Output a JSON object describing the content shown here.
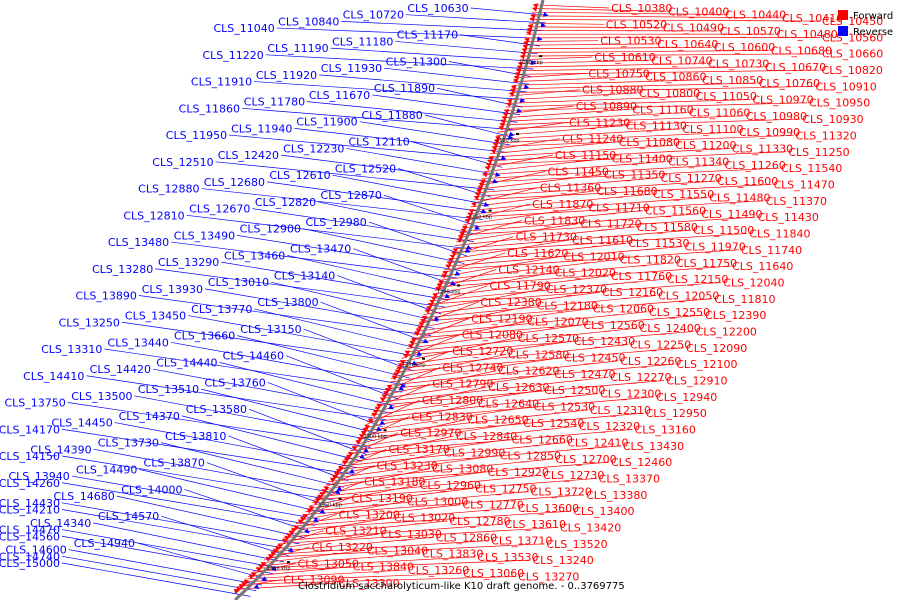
{
  "caption": "Clostridium saccharolyticum-like K10 draft genome. - 0..3769775",
  "legend": [
    {
      "label": "Forward",
      "color": "#ff0000"
    },
    {
      "label": "Reverse",
      "color": "#0000ff"
    }
  ],
  "colors": {
    "forward": "#ff0000",
    "reverse": "#0000ff",
    "backbone": "#777777"
  },
  "ticks": [
    "1050 kbp",
    "1100 kbp",
    "1150 kbp",
    "1200 kbp",
    "1250 kbp",
    "1300 kbp",
    "1350 kbp",
    "1400 kbp"
  ],
  "reverse_labels": [
    "CLS_10630",
    "CLS_10720",
    "CLS_10840",
    "CLS_11040",
    "CLS_11170",
    "CLS_11180",
    "CLS_11190",
    "CLS_11220",
    "CLS_11300",
    "CLS_11930",
    "CLS_11920",
    "CLS_11910",
    "CLS_11890",
    "CLS_11670",
    "CLS_11780",
    "CLS_11860",
    "CLS_11880",
    "CLS_11900",
    "CLS_11940",
    "CLS_11950",
    "CLS_12110",
    "CLS_12230",
    "CLS_12420",
    "CLS_12510",
    "CLS_12520",
    "CLS_12610",
    "CLS_12680",
    "CLS_12880",
    "CLS_12870",
    "CLS_12820",
    "CLS_12670",
    "CLS_12810",
    "CLS_12980",
    "CLS_12900",
    "CLS_13490",
    "CLS_13480",
    "CLS_13470",
    "CLS_13460",
    "CLS_13290",
    "CLS_13280",
    "CLS_13140",
    "CLS_13010",
    "CLS_13930",
    "CLS_13890",
    "CLS_13800",
    "CLS_13770",
    "CLS_13450",
    "CLS_13250",
    "CLS_13150",
    "CLS_13660",
    "CLS_13440",
    "CLS_13310",
    "CLS_14460",
    "CLS_14440",
    "CLS_14420",
    "CLS_14410",
    "CLS_13760",
    "CLS_13510",
    "CLS_13500",
    "CLS_13750",
    "CLS_13580",
    "CLS_14370",
    "CLS_14450",
    "CLS_14170",
    "CLS_13810",
    "CLS_13730",
    "CLS_14390",
    "CLS_14150",
    "CLS_13870",
    "CLS_14490",
    "CLS_13940",
    "CLS_14260",
    "CLS_14000",
    "CLS_14680",
    "CLS_14430",
    "CLS_14210",
    "CLS_14570",
    "CLS_14340",
    "CLS_14470",
    "CLS_14560",
    "CLS_14940",
    "CLS_14600",
    "CLS_14740",
    "CLS_15000"
  ],
  "forward_labels": [
    "CLS_10380",
    "CLS_10400",
    "CLS_10440",
    "CLS_10410",
    "CLS_10450",
    "CLS_10520",
    "CLS_10490",
    "CLS_10570",
    "CLS_10480",
    "CLS_10560",
    "CLS_10530",
    "CLS_10640",
    "CLS_10600",
    "CLS_10680",
    "CLS_10660",
    "CLS_10610",
    "CLS_10740",
    "CLS_10730",
    "CLS_10670",
    "CLS_10820",
    "CLS_10750",
    "CLS_10860",
    "CLS_10850",
    "CLS_10760",
    "CLS_10910",
    "CLS_10880",
    "CLS_10800",
    "CLS_11050",
    "CLS_10970",
    "CLS_10950",
    "CLS_10890",
    "CLS_11160",
    "CLS_11060",
    "CLS_10980",
    "CLS_10930",
    "CLS_11230",
    "CLS_11130",
    "CLS_11100",
    "CLS_10990",
    "CLS_11320",
    "CLS_11240",
    "CLS_11080",
    "CLS_11200",
    "CLS_11330",
    "CLS_11250",
    "CLS_11150",
    "CLS_11400",
    "CLS_11340",
    "CLS_11260",
    "CLS_11540",
    "CLS_11450",
    "CLS_11350",
    "CLS_11270",
    "CLS_11600",
    "CLS_11470",
    "CLS_11360",
    "CLS_11680",
    "CLS_11550",
    "CLS_11480",
    "CLS_11370",
    "CLS_11870",
    "CLS_11710",
    "CLS_11560",
    "CLS_11490",
    "CLS_11430",
    "CLS_11830",
    "CLS_11720",
    "CLS_11580",
    "CLS_11500",
    "CLS_11840",
    "CLS_11730",
    "CLS_11610",
    "CLS_11530",
    "CLS_11970",
    "CLS_11740",
    "CLS_11620",
    "CLS_12010",
    "CLS_11820",
    "CLS_11750",
    "CLS_11640",
    "CLS_12140",
    "CLS_12020",
    "CLS_11760",
    "CLS_12150",
    "CLS_12040",
    "CLS_11790",
    "CLS_12370",
    "CLS_12160",
    "CLS_12050",
    "CLS_11810",
    "CLS_12380",
    "CLS_12180",
    "CLS_12060",
    "CLS_12550",
    "CLS_12390",
    "CLS_12190",
    "CLS_12070",
    "CLS_12560",
    "CLS_12400",
    "CLS_12200",
    "CLS_12080",
    "CLS_12570",
    "CLS_12430",
    "CLS_12250",
    "CLS_12090",
    "CLS_12720",
    "CLS_12580",
    "CLS_12450",
    "CLS_12260",
    "CLS_12100",
    "CLS_12740",
    "CLS_12620",
    "CLS_12470",
    "CLS_12270",
    "CLS_12910",
    "CLS_12790",
    "CLS_12630",
    "CLS_12500",
    "CLS_12300",
    "CLS_12940",
    "CLS_12800",
    "CLS_12640",
    "CLS_12530",
    "CLS_12310",
    "CLS_12950",
    "CLS_12830",
    "CLS_12650",
    "CLS_12540",
    "CLS_12320",
    "CLS_13160",
    "CLS_12970",
    "CLS_12840",
    "CLS_12660",
    "CLS_12410",
    "CLS_13430",
    "CLS_13170",
    "CLS_12990",
    "CLS_12850",
    "CLS_12700",
    "CLS_12460",
    "CLS_13230",
    "CLS_13080",
    "CLS_12920",
    "CLS_12730",
    "CLS_13370",
    "CLS_13180",
    "CLS_12960",
    "CLS_12750",
    "CLS_13720",
    "CLS_13380",
    "CLS_13190",
    "CLS_13000",
    "CLS_12770",
    "CLS_13600",
    "CLS_13400",
    "CLS_13200",
    "CLS_13020",
    "CLS_12780",
    "CLS_13610",
    "CLS_13420",
    "CLS_13210",
    "CLS_13030",
    "CLS_12860",
    "CLS_13710",
    "CLS_13520",
    "CLS_13220",
    "CLS_13040",
    "CLS_13830",
    "CLS_13530",
    "CLS_13240",
    "CLS_13050",
    "CLS_13840",
    "CLS_13260",
    "CLS_13060",
    "CLS_13270",
    "CLS_13090",
    "CLS_13300"
  ]
}
